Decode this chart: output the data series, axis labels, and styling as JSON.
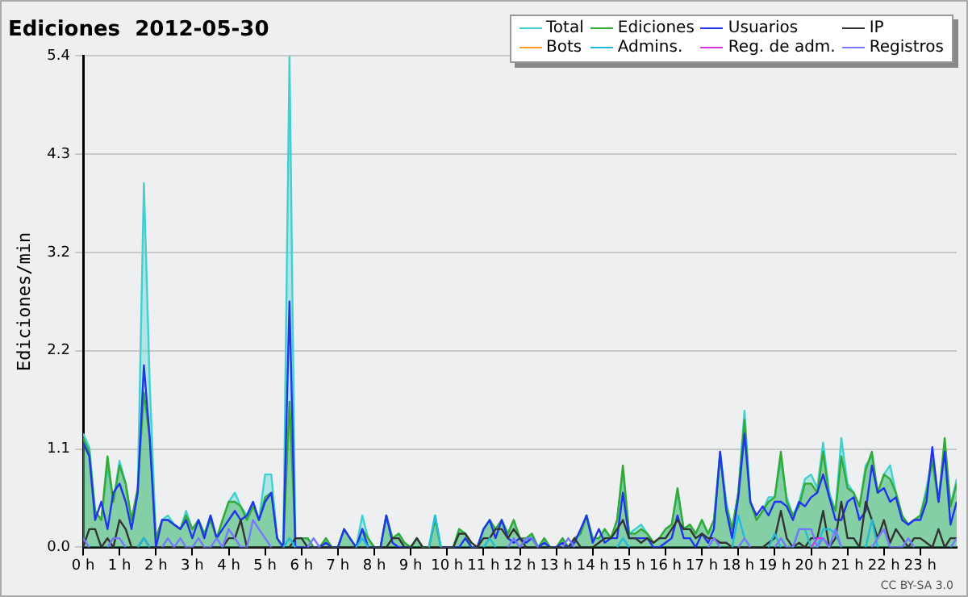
{
  "chart_data": {
    "type": "line",
    "title": "Ediciones  2012-05-30",
    "ylabel": "Ediciones/min",
    "annotations": [
      "CC BY-SA 3.0"
    ],
    "x": [
      0,
      0.17,
      0.33,
      0.5,
      0.67,
      0.83,
      1,
      1.17,
      1.33,
      1.5,
      1.67,
      1.83,
      2,
      2.17,
      2.33,
      2.5,
      2.67,
      2.83,
      3,
      3.17,
      3.33,
      3.5,
      3.67,
      3.83,
      4,
      4.17,
      4.33,
      4.5,
      4.67,
      4.83,
      5,
      5.17,
      5.33,
      5.5,
      5.67,
      5.83,
      6,
      6.17,
      6.33,
      6.5,
      6.67,
      6.83,
      7,
      7.17,
      7.33,
      7.5,
      7.67,
      7.83,
      8,
      8.17,
      8.33,
      8.5,
      8.67,
      8.83,
      9,
      9.17,
      9.33,
      9.5,
      9.67,
      9.83,
      10,
      10.17,
      10.33,
      10.5,
      10.67,
      10.83,
      11,
      11.17,
      11.33,
      11.5,
      11.67,
      11.83,
      12,
      12.17,
      12.33,
      12.5,
      12.67,
      12.83,
      13,
      13.17,
      13.33,
      13.5,
      13.67,
      13.83,
      14,
      14.17,
      14.33,
      14.5,
      14.67,
      14.83,
      15,
      15.17,
      15.33,
      15.5,
      15.67,
      15.83,
      16,
      16.17,
      16.33,
      16.5,
      16.67,
      16.83,
      17,
      17.17,
      17.33,
      17.5,
      17.67,
      17.83,
      18,
      18.17,
      18.33,
      18.5,
      18.67,
      18.83,
      19,
      19.17,
      19.33,
      19.5,
      19.67,
      19.83,
      20,
      20.17,
      20.33,
      20.5,
      20.67,
      20.83,
      21,
      21.17,
      21.33,
      21.5,
      21.67,
      21.83,
      22,
      22.17,
      22.33,
      22.5,
      22.67,
      22.83,
      23,
      23.17,
      23.33,
      23.5,
      23.67,
      23.83,
      24
    ],
    "xlim": [
      0,
      24
    ],
    "xticks": [
      {
        "value": 0,
        "label": "0 h"
      },
      {
        "value": 1,
        "label": "1 h"
      },
      {
        "value": 2,
        "label": "2 h"
      },
      {
        "value": 3,
        "label": "3 h"
      },
      {
        "value": 4,
        "label": "4 h"
      },
      {
        "value": 5,
        "label": "5 h"
      },
      {
        "value": 6,
        "label": "6 h"
      },
      {
        "value": 7,
        "label": "7 h"
      },
      {
        "value": 8,
        "label": "8 h"
      },
      {
        "value": 9,
        "label": "9 h"
      },
      {
        "value": 10,
        "label": "10 h"
      },
      {
        "value": 11,
        "label": "11 h"
      },
      {
        "value": 12,
        "label": "12 h"
      },
      {
        "value": 13,
        "label": "13 h"
      },
      {
        "value": 14,
        "label": "14 h"
      },
      {
        "value": 15,
        "label": "15 h"
      },
      {
        "value": 16,
        "label": "16 h"
      },
      {
        "value": 17,
        "label": "17 h"
      },
      {
        "value": 18,
        "label": "18 h"
      },
      {
        "value": 19,
        "label": "19 h"
      },
      {
        "value": 20,
        "label": "20 h"
      },
      {
        "value": 21,
        "label": "21 h"
      },
      {
        "value": 22,
        "label": "22 h"
      },
      {
        "value": 23,
        "label": "23 h"
      }
    ],
    "ylim": [
      0,
      5.4
    ],
    "yticks": [
      {
        "value": 0,
        "label": "0.0"
      },
      {
        "value": 1.08,
        "label": "1.1"
      },
      {
        "value": 2.16,
        "label": "2.2"
      },
      {
        "value": 3.24,
        "label": "3.2"
      },
      {
        "value": 4.32,
        "label": "4.3"
      },
      {
        "value": 5.4,
        "label": "5.4"
      }
    ],
    "grid": "y",
    "legend": "top right",
    "marker": "none",
    "line_style": "solid",
    "series": [
      {
        "name": "Total",
        "type": "area",
        "color": "#40d0d0",
        "values": [
          1.25,
          1.1,
          0.4,
          0.3,
          0.9,
          0.5,
          0.95,
          0.7,
          0.3,
          0.6,
          4.0,
          1.8,
          0.1,
          0.3,
          0.35,
          0.25,
          0.2,
          0.4,
          0.2,
          0.3,
          0.15,
          0.35,
          0.1,
          0.3,
          0.5,
          0.6,
          0.45,
          0.35,
          0.5,
          0.3,
          0.8,
          0.8,
          0.1,
          0,
          5.4,
          0.1,
          0.1,
          0.1,
          0,
          0,
          0.1,
          0,
          0,
          0.2,
          0.1,
          0,
          0.35,
          0.1,
          0,
          0,
          0.35,
          0.1,
          0.15,
          0.05,
          0,
          0.1,
          0,
          0,
          0.35,
          0,
          0,
          0,
          0.2,
          0.15,
          0,
          0,
          0.2,
          0.3,
          0.2,
          0.3,
          0.15,
          0.3,
          0.1,
          0.05,
          0.15,
          0,
          0.1,
          0,
          0,
          0.1,
          0,
          0.1,
          0.15,
          0.35,
          0.1,
          0.1,
          0.2,
          0.1,
          0.3,
          0.85,
          0.15,
          0.2,
          0.25,
          0.15,
          0.05,
          0.1,
          0.2,
          0.25,
          0.6,
          0.2,
          0.25,
          0.15,
          0.3,
          0.15,
          0.3,
          1.05,
          0.5,
          0.2,
          0.6,
          1.5,
          0.5,
          0.3,
          0.4,
          0.55,
          0.55,
          0.95,
          0.55,
          0.35,
          0.5,
          0.75,
          0.8,
          0.65,
          1.15,
          0.6,
          0.4,
          1.2,
          0.7,
          0.6,
          0.45,
          0.9,
          1.0,
          0.6,
          0.8,
          0.9,
          0.6,
          0.35,
          0.25,
          0.3,
          0.35,
          0.65,
          1.0,
          0.5,
          1.15,
          0.45,
          0.75
        ]
      },
      {
        "name": "Ediciones",
        "type": "area",
        "color": "#33aa33",
        "values": [
          1.2,
          1.05,
          0.4,
          0.3,
          1.0,
          0.5,
          0.9,
          0.7,
          0.3,
          0.65,
          1.7,
          1.2,
          0.1,
          0.3,
          0.3,
          0.25,
          0.2,
          0.35,
          0.2,
          0.3,
          0.15,
          0.3,
          0.1,
          0.3,
          0.5,
          0.5,
          0.45,
          0.3,
          0.45,
          0.3,
          0.55,
          0.6,
          0.1,
          0,
          1.6,
          0.1,
          0.1,
          0.1,
          0,
          0,
          0.1,
          0,
          0,
          0.2,
          0.1,
          0,
          0.2,
          0.1,
          0,
          0,
          0.35,
          0.1,
          0.15,
          0.05,
          0,
          0.1,
          0,
          0,
          0.3,
          0,
          0,
          0,
          0.2,
          0.15,
          0,
          0,
          0.2,
          0.3,
          0.2,
          0.3,
          0.15,
          0.3,
          0.1,
          0.1,
          0.15,
          0,
          0.1,
          0,
          0,
          0.1,
          0,
          0.1,
          0.15,
          0.35,
          0.1,
          0.1,
          0.2,
          0.1,
          0.3,
          0.9,
          0.15,
          0.15,
          0.2,
          0.15,
          0.05,
          0.1,
          0.2,
          0.25,
          0.65,
          0.2,
          0.25,
          0.15,
          0.3,
          0.15,
          0.3,
          1.0,
          0.45,
          0.2,
          0.6,
          1.4,
          0.5,
          0.3,
          0.4,
          0.5,
          0.55,
          1.05,
          0.5,
          0.35,
          0.45,
          0.7,
          0.7,
          0.6,
          1.05,
          0.55,
          0.4,
          1.0,
          0.65,
          0.6,
          0.45,
          0.85,
          1.05,
          0.6,
          0.8,
          0.75,
          0.6,
          0.35,
          0.25,
          0.3,
          0.35,
          0.6,
          0.95,
          0.5,
          1.2,
          0.45,
          0.7
        ]
      },
      {
        "name": "Usuarios",
        "type": "line",
        "color": "#2233ee",
        "values": [
          1.15,
          1.0,
          0.3,
          0.5,
          0.2,
          0.6,
          0.7,
          0.5,
          0.2,
          0.6,
          2.0,
          1.2,
          0,
          0.3,
          0.3,
          0.25,
          0.2,
          0.3,
          0.1,
          0.3,
          0.1,
          0.35,
          0.1,
          0.2,
          0.3,
          0.4,
          0.3,
          0.35,
          0.5,
          0.3,
          0.5,
          0.6,
          0.1,
          0,
          2.7,
          0,
          0,
          0,
          0,
          0,
          0.05,
          0,
          0,
          0.2,
          0.1,
          0,
          0.2,
          0,
          0,
          0,
          0.35,
          0.05,
          0,
          0,
          0,
          null,
          null,
          null,
          null,
          0,
          0,
          0,
          0,
          0.1,
          0,
          0,
          0.2,
          0.3,
          0.1,
          0.3,
          0.1,
          0.05,
          0.1,
          0.05,
          0.1,
          0,
          0.05,
          0,
          0,
          0.05,
          0,
          0.05,
          0.2,
          0.35,
          0.05,
          0.2,
          0.05,
          0.1,
          0.1,
          0.6,
          0.1,
          0.1,
          0.1,
          0.1,
          0,
          0,
          0.05,
          0.1,
          0.35,
          0.1,
          0.1,
          0,
          0.15,
          0.05,
          0.2,
          1.05,
          0.4,
          0.1,
          0.55,
          1.25,
          0.5,
          0.35,
          0.45,
          0.35,
          0.5,
          0.5,
          0.45,
          0.3,
          0.5,
          0.45,
          0.55,
          0.6,
          0.8,
          0.55,
          0.3,
          0.3,
          0.5,
          0.55,
          0.3,
          0.4,
          0.9,
          0.6,
          0.65,
          0.5,
          0.55,
          0.3,
          0.25,
          0.3,
          0.3,
          0.5,
          1.1,
          0.5,
          1.05,
          0.25,
          0.5
        ]
      },
      {
        "name": "IP",
        "type": "line",
        "color": "#333333",
        "values": [
          0,
          0.2,
          0.2,
          0,
          0.1,
          0,
          0.3,
          0.2,
          0,
          0,
          0.1,
          0,
          0,
          0,
          0,
          0,
          0,
          0,
          0,
          0,
          0,
          0,
          0,
          0,
          0.1,
          0.1,
          0.3,
          0,
          0,
          0,
          0,
          0,
          0,
          0,
          0,
          0.1,
          0.1,
          0,
          0,
          0,
          0,
          0,
          0,
          0,
          0,
          0,
          0,
          0,
          0,
          0,
          0,
          0.1,
          0.1,
          0,
          0,
          0.1,
          0,
          0,
          0,
          0,
          0,
          0,
          0.15,
          0.15,
          0.05,
          0,
          0.1,
          0.1,
          0.2,
          0.2,
          0.1,
          0.2,
          0.1,
          0,
          0,
          0,
          0,
          0,
          0,
          0,
          0,
          0.1,
          0,
          0,
          0,
          0.05,
          0.1,
          0.1,
          0.2,
          0.3,
          0.1,
          0.1,
          0.05,
          0.1,
          0.05,
          0.1,
          0.1,
          0.2,
          0.3,
          0.2,
          0.2,
          0.1,
          0.15,
          0.1,
          0.1,
          0.05,
          0.05,
          0,
          0,
          0,
          0,
          0,
          0,
          0.05,
          0.1,
          0.4,
          0.1,
          0,
          0.05,
          0,
          0.1,
          0.1,
          0.4,
          0,
          0.1,
          0.5,
          0.1,
          0.1,
          0,
          0.5,
          0.3,
          0.1,
          0.3,
          0.05,
          0.2,
          0.1,
          0,
          0.1,
          0.1,
          0.05,
          0,
          0.2,
          0,
          0.1,
          0.1
        ]
      },
      {
        "name": "Bots",
        "type": "line",
        "color": "#ff9922",
        "values": [
          null,
          null,
          null,
          null,
          null,
          null,
          null,
          null,
          null,
          null,
          null,
          null,
          null,
          null,
          null,
          null,
          null,
          null,
          null,
          null,
          null,
          null,
          null,
          null,
          null,
          null,
          null,
          null,
          null,
          null,
          null,
          null,
          null,
          null,
          null,
          null,
          null,
          null,
          null,
          null,
          null,
          null,
          null,
          null,
          null,
          null,
          null,
          null,
          null,
          null,
          null,
          null,
          null,
          null,
          null,
          null,
          null,
          null,
          null,
          null,
          null,
          null,
          null,
          null,
          null,
          null,
          null,
          null,
          null,
          null,
          null,
          null,
          null,
          null,
          null,
          null,
          null,
          null,
          null,
          null,
          null,
          null,
          null,
          null,
          null,
          null,
          null,
          null,
          null,
          null,
          null,
          null,
          null,
          null,
          null,
          null,
          null,
          null,
          null,
          null,
          null,
          null,
          null,
          null,
          null,
          null,
          null,
          null,
          null,
          null,
          null,
          null,
          null,
          null,
          null,
          null,
          null,
          null,
          null,
          null,
          null,
          null,
          null,
          null,
          null,
          null,
          null,
          null,
          null,
          null,
          null,
          null,
          null,
          null,
          null,
          null,
          null,
          null,
          null,
          null,
          null,
          null,
          null,
          null,
          null
        ]
      },
      {
        "name": "Admins.",
        "type": "line",
        "color": "#22bbdd",
        "values": [
          null,
          null,
          null,
          null,
          null,
          null,
          null,
          null,
          null,
          0,
          0.1,
          0,
          null,
          null,
          null,
          null,
          null,
          null,
          null,
          null,
          null,
          null,
          null,
          null,
          null,
          null,
          null,
          null,
          null,
          null,
          null,
          null,
          null,
          0,
          0.1,
          0,
          null,
          null,
          null,
          null,
          null,
          null,
          null,
          null,
          null,
          0,
          0.1,
          0,
          null,
          null,
          null,
          null,
          null,
          null,
          null,
          null,
          null,
          0,
          0.35,
          0,
          null,
          null,
          null,
          null,
          null,
          null,
          0,
          0.1,
          0,
          null,
          null,
          null,
          null,
          null,
          null,
          null,
          null,
          null,
          null,
          null,
          null,
          null,
          null,
          null,
          null,
          null,
          null,
          null,
          0,
          0.1,
          0,
          null,
          null,
          null,
          null,
          null,
          null,
          null,
          null,
          null,
          null,
          null,
          null,
          null,
          null,
          null,
          null,
          0,
          0.35,
          0.1,
          null,
          null,
          null,
          0,
          0.15,
          0,
          null,
          0,
          0.2,
          0.2,
          0,
          0,
          0.2,
          0.2,
          0.15,
          0,
          null,
          null,
          null,
          0,
          0.3,
          0,
          null,
          null,
          null,
          null,
          null,
          null,
          null,
          null,
          null,
          null,
          null,
          null,
          null
        ]
      },
      {
        "name": "Reg. de adm.",
        "type": "line",
        "color": "#dd33dd",
        "values": [
          null,
          null,
          null,
          null,
          null,
          null,
          null,
          null,
          null,
          null,
          null,
          null,
          null,
          null,
          null,
          null,
          null,
          null,
          null,
          null,
          null,
          null,
          null,
          null,
          null,
          null,
          null,
          null,
          null,
          null,
          null,
          null,
          null,
          null,
          null,
          null,
          null,
          null,
          null,
          null,
          null,
          null,
          null,
          null,
          null,
          null,
          null,
          null,
          null,
          null,
          null,
          null,
          null,
          null,
          null,
          null,
          null,
          null,
          null,
          null,
          null,
          null,
          null,
          null,
          null,
          null,
          null,
          null,
          null,
          null,
          null,
          null,
          null,
          null,
          null,
          null,
          null,
          null,
          null,
          null,
          null,
          null,
          null,
          null,
          null,
          null,
          null,
          null,
          null,
          null,
          null,
          null,
          null,
          null,
          null,
          null,
          null,
          null,
          null,
          null,
          null,
          null,
          null,
          null,
          null,
          null,
          null,
          null,
          null,
          null,
          null,
          null,
          null,
          null,
          null,
          null,
          null,
          null,
          null,
          null,
          0,
          0.1,
          0.1,
          0,
          null,
          null,
          null,
          null,
          null,
          null,
          null,
          null,
          null,
          null,
          null,
          null,
          null,
          null,
          null,
          null,
          null,
          null,
          null,
          null,
          null
        ]
      },
      {
        "name": "Registros",
        "type": "line",
        "color": "#7777ff",
        "values": [
          0.1,
          0,
          null,
          null,
          0,
          0.1,
          0.1,
          0,
          null,
          null,
          null,
          null,
          null,
          0,
          0.1,
          0,
          0.1,
          0,
          0,
          0.1,
          0,
          0,
          0.1,
          0,
          0.2,
          0.1,
          0,
          0,
          0.3,
          0.2,
          0.1,
          0,
          null,
          null,
          null,
          null,
          null,
          0,
          0.1,
          0,
          null,
          null,
          null,
          null,
          null,
          null,
          null,
          null,
          null,
          null,
          null,
          null,
          null,
          null,
          null,
          null,
          null,
          null,
          null,
          null,
          null,
          null,
          null,
          null,
          null,
          null,
          null,
          null,
          null,
          null,
          0,
          0.1,
          0,
          0.1,
          0.1,
          0,
          null,
          null,
          null,
          0,
          0.1,
          0,
          null,
          null,
          null,
          null,
          null,
          null,
          null,
          null,
          null,
          null,
          null,
          null,
          null,
          null,
          null,
          null,
          null,
          null,
          null,
          null,
          null,
          0,
          0.1,
          0,
          null,
          null,
          0,
          0.1,
          0,
          null,
          null,
          null,
          0,
          0.1,
          0,
          0,
          0.2,
          0.2,
          0.2,
          0,
          0.1,
          0,
          0.2,
          0,
          null,
          null,
          null,
          null,
          0,
          0.1,
          0.2,
          0,
          0,
          0,
          0.1,
          0,
          null,
          null,
          null,
          null,
          null,
          0,
          0.1
        ]
      }
    ]
  }
}
